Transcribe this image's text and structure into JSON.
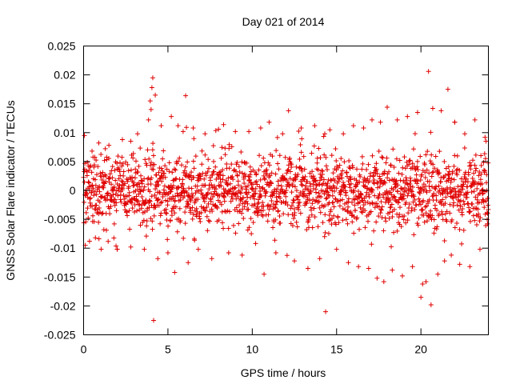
{
  "chart_data": {
    "type": "scatter",
    "title": "Day 021 of 2014",
    "xlabel": "GPS time / hours",
    "ylabel": "GNSS Solar Flare indicator / TECUs",
    "xlim": [
      0,
      24
    ],
    "ylim": [
      -0.025,
      0.025
    ],
    "x_ticks": [
      0,
      5,
      10,
      15,
      20
    ],
    "y_ticks": [
      -0.025,
      -0.02,
      -0.015,
      -0.01,
      -0.005,
      0,
      0.005,
      0.01,
      0.015,
      0.02,
      0.025
    ],
    "x_tick_labels": [
      "0",
      "5",
      "10",
      "15",
      "20"
    ],
    "y_tick_labels": [
      "-0.025",
      "-0.02",
      "-0.015",
      "-0.01",
      "-0.005",
      "0",
      "0.005",
      "0.01",
      "0.015",
      "0.02",
      "0.025"
    ],
    "grid": false,
    "legend": "none",
    "marker": "plus",
    "color": "#e00000",
    "series": [
      {
        "points": [
          [
            0.05,
            0.0095
          ],
          [
            0.1,
            -0.0095
          ],
          [
            0.2,
            0.0032
          ],
          [
            0.35,
            -0.0088
          ],
          [
            0.5,
            0.0068
          ],
          [
            0.7,
            -0.0082
          ],
          [
            0.9,
            0.0082
          ],
          [
            1.2,
            -0.0068
          ],
          [
            1.5,
            0.0078
          ],
          [
            2.0,
            -0.0102
          ],
          [
            2.3,
            0.0088
          ],
          [
            2.8,
            -0.0098
          ],
          [
            3.2,
            0.0098
          ],
          [
            3.6,
            -0.0102
          ],
          [
            3.85,
            0.0122
          ],
          [
            3.95,
            0.0155
          ],
          [
            4.0,
            0.014
          ],
          [
            4.05,
            0.0178
          ],
          [
            4.1,
            0.0195
          ],
          [
            4.15,
            -0.0225
          ],
          [
            4.25,
            0.0165
          ],
          [
            4.4,
            -0.0118
          ],
          [
            4.6,
            0.0112
          ],
          [
            5.0,
            -0.0108
          ],
          [
            5.2,
            0.0128
          ],
          [
            5.4,
            -0.0142
          ],
          [
            5.6,
            0.0112
          ],
          [
            5.9,
            0.0102
          ],
          [
            6.05,
            0.0164
          ],
          [
            6.2,
            -0.0125
          ],
          [
            6.5,
            0.0108
          ],
          [
            6.8,
            -0.0102
          ],
          [
            7.2,
            0.0098
          ],
          [
            7.6,
            -0.0118
          ],
          [
            8.0,
            0.0106
          ],
          [
            8.3,
            0.0114
          ],
          [
            8.6,
            -0.0108
          ],
          [
            9.0,
            0.0102
          ],
          [
            9.4,
            -0.0112
          ],
          [
            9.8,
            0.0102
          ],
          [
            10.2,
            -0.0092
          ],
          [
            10.5,
            0.0108
          ],
          [
            10.7,
            -0.0145
          ],
          [
            11.0,
            0.0118
          ],
          [
            11.4,
            -0.0108
          ],
          [
            11.8,
            0.0098
          ],
          [
            12.15,
            0.0138
          ],
          [
            12.5,
            -0.0122
          ],
          [
            12.9,
            0.0108
          ],
          [
            13.3,
            -0.0135
          ],
          [
            13.7,
            0.0112
          ],
          [
            14.0,
            -0.0118
          ],
          [
            14.3,
            0.0098
          ],
          [
            14.35,
            -0.021
          ],
          [
            14.6,
            0.0105
          ],
          [
            15.0,
            -0.0102
          ],
          [
            15.4,
            0.0098
          ],
          [
            15.7,
            -0.0125
          ],
          [
            16.0,
            0.0112
          ],
          [
            16.3,
            -0.0132
          ],
          [
            16.6,
            0.0108
          ],
          [
            16.9,
            -0.0135
          ],
          [
            17.1,
            0.0122
          ],
          [
            17.4,
            -0.0152
          ],
          [
            17.6,
            0.0118
          ],
          [
            17.8,
            -0.0158
          ],
          [
            18.0,
            0.0144
          ],
          [
            18.3,
            -0.0138
          ],
          [
            18.6,
            0.0122
          ],
          [
            18.9,
            -0.0148
          ],
          [
            19.2,
            0.0128
          ],
          [
            19.5,
            -0.0132
          ],
          [
            19.8,
            0.0135
          ],
          [
            20.0,
            -0.0185
          ],
          [
            20.1,
            -0.0162
          ],
          [
            20.3,
            -0.0158
          ],
          [
            20.45,
            0.0206
          ],
          [
            20.6,
            -0.0198
          ],
          [
            20.7,
            0.0142
          ],
          [
            21.0,
            -0.0145
          ],
          [
            21.2,
            0.0138
          ],
          [
            21.4,
            -0.0122
          ],
          [
            21.6,
            0.0175
          ],
          [
            21.8,
            -0.0112
          ],
          [
            22.0,
            0.0118
          ],
          [
            22.3,
            -0.0128
          ],
          [
            22.6,
            0.0098
          ],
          [
            22.9,
            -0.0132
          ],
          [
            23.2,
            0.0122
          ],
          [
            23.5,
            -0.0102
          ],
          [
            23.8,
            0.0092
          ],
          [
            23.95,
            -0.0058
          ]
        ]
      }
    ],
    "noise_band": {
      "x_step": 0.013,
      "core_sd": 0.0033,
      "seed": 21
    }
  }
}
